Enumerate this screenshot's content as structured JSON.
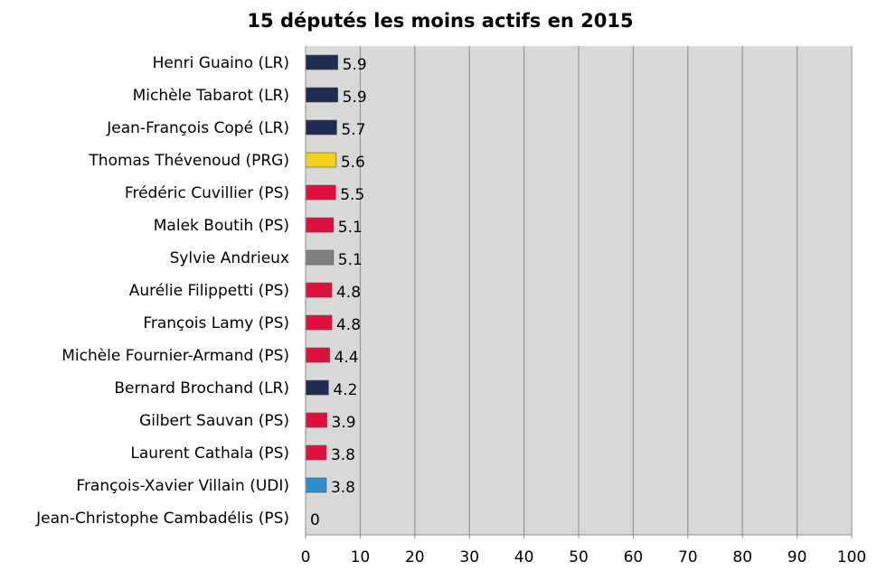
{
  "chart_data": {
    "type": "bar",
    "orientation": "horizontal",
    "title": "15 députés les moins actifs en 2015",
    "xlabel": "",
    "ylabel": "",
    "xlim": [
      0,
      100
    ],
    "x_ticks": [
      0,
      10,
      20,
      30,
      40,
      50,
      60,
      70,
      80,
      90,
      100
    ],
    "grid": "vertical",
    "legend": "none",
    "plot_background": "#d9d9d9",
    "gridline_color": "#8c8c8c",
    "categories": [
      "Henri Guaino (LR)",
      "Michèle Tabarot (LR)",
      "Jean-François Copé (LR)",
      "Thomas Thévenoud (PRG)",
      "Frédéric Cuvillier (PS)",
      "Malek Boutih (PS)",
      "Sylvie Andrieux",
      "Aurélie Filippetti (PS)",
      "François Lamy (PS)",
      "Michèle Fournier-Armand (PS)",
      "Bernard Brochand (LR)",
      "Gilbert Sauvan (PS)",
      "Laurent Cathala (PS)",
      "François-Xavier Villain (UDI)",
      "Jean-Christophe Cambadélis (PS)"
    ],
    "values": [
      5.9,
      5.9,
      5.7,
      5.6,
      5.5,
      5.1,
      5.1,
      4.8,
      4.8,
      4.4,
      4.2,
      3.9,
      3.8,
      3.8,
      0
    ],
    "value_labels": [
      "5.9",
      "5.9",
      "5.7",
      "5.6",
      "5.5",
      "5.1",
      "5.1",
      "4.8",
      "4.8",
      "4.4",
      "4.2",
      "3.9",
      "3.8",
      "3.8",
      "0"
    ],
    "bar_colors": [
      "#1f2d55",
      "#1f2d55",
      "#1f2d55",
      "#f5d21a",
      "#e0103c",
      "#e0103c",
      "#808080",
      "#e0103c",
      "#e0103c",
      "#e0103c",
      "#1f2d55",
      "#e0103c",
      "#e0103c",
      "#2a8fcc",
      "#e0103c"
    ]
  }
}
